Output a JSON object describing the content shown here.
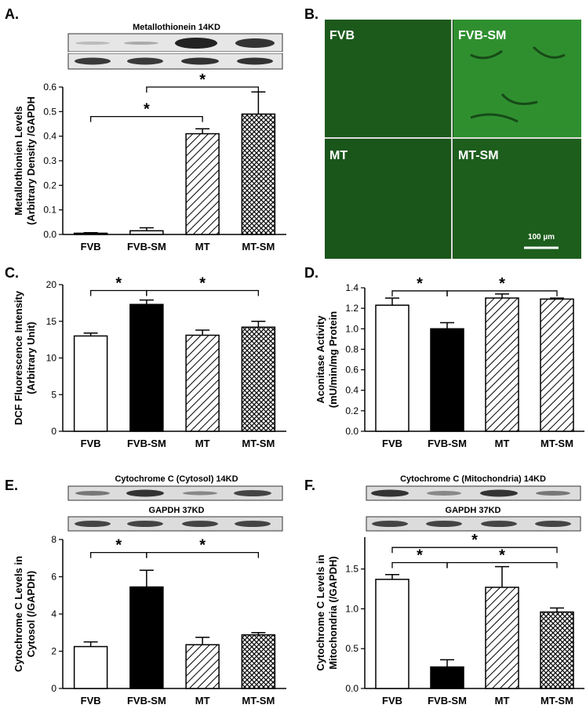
{
  "panels": {
    "A": {
      "letter": "A.",
      "blot_label": "Metallothionein 14KD"
    },
    "B": {
      "letter": "B.",
      "labels": [
        "FVB",
        "FVB-SM",
        "MT",
        "MT-SM"
      ],
      "scale_bar": "100 µm"
    },
    "C": {
      "letter": "C."
    },
    "D": {
      "letter": "D."
    },
    "E": {
      "letter": "E.",
      "blot_label_top": "Cytochrome C (Cytosol) 14KD",
      "blot_label_bottom": "GAPDH 37KD"
    },
    "F": {
      "letter": "F.",
      "blot_label_top": "Cytochrome C (Mitochondria) 14KD",
      "blot_label_bottom": "GAPDH 37KD"
    }
  },
  "colors": {
    "fill_FVB": "#ffffff",
    "fill_FVB_SM": "#000000",
    "micrograph_green": "#1f6b1f"
  },
  "chart_data": [
    {
      "id": "A",
      "type": "bar",
      "categories": [
        "FVB",
        "FVB-SM",
        "MT",
        "MT-SM"
      ],
      "values": [
        0.005,
        0.015,
        0.41,
        0.49
      ],
      "errors": [
        0.002,
        0.012,
        0.02,
        0.09
      ],
      "fills": [
        "white",
        "white",
        "hatch",
        "crosshatch"
      ],
      "ylabel": [
        "Metallothionien Levels",
        "(Arbitrary Density /GAPDH"
      ],
      "ylim": [
        0,
        0.6
      ],
      "yticks": [
        0.0,
        0.1,
        0.2,
        0.3,
        0.4,
        0.5,
        0.6
      ],
      "ytick_labels": [
        "0.0",
        "0.1",
        "0.2",
        "0.3",
        "0.4",
        "0.5",
        "0.6"
      ],
      "sig": [
        {
          "from": 0,
          "to": 2,
          "y": 0.48,
          "label": "*"
        },
        {
          "from": 1,
          "to": 3,
          "y": 0.6,
          "label": "*"
        }
      ]
    },
    {
      "id": "C",
      "type": "bar",
      "categories": [
        "FVB",
        "FVB-SM",
        "MT",
        "MT-SM"
      ],
      "values": [
        13.0,
        17.3,
        13.1,
        14.2
      ],
      "errors": [
        0.4,
        0.6,
        0.7,
        0.8
      ],
      "fills": [
        "white",
        "black",
        "hatch",
        "crosshatch"
      ],
      "ylabel": [
        "DCF Fluorescence Intensity",
        "(Arbitrary Unit)"
      ],
      "ylim": [
        0,
        20
      ],
      "yticks": [
        0,
        5,
        10,
        15,
        20
      ],
      "ytick_labels": [
        "0",
        "5",
        "10",
        "15",
        "20"
      ],
      "sig": [
        {
          "from": 0,
          "to": 1,
          "y": 19.2,
          "label": "*"
        },
        {
          "from": 1,
          "to": 3,
          "y": 19.2,
          "label": "*"
        }
      ]
    },
    {
      "id": "D",
      "type": "bar",
      "categories": [
        "FVB",
        "FVB-SM",
        "MT",
        "MT-SM"
      ],
      "values": [
        1.23,
        1.0,
        1.3,
        1.29
      ],
      "errors": [
        0.07,
        0.06,
        0.04,
        0.01
      ],
      "fills": [
        "white",
        "black",
        "hatch",
        "hatch"
      ],
      "ylabel": [
        "Aconitase Activity",
        "(mU/min/mg Protein"
      ],
      "ylim": [
        0,
        1.4
      ],
      "yticks": [
        0.0,
        0.2,
        0.4,
        0.6,
        0.8,
        1.0,
        1.2,
        1.4
      ],
      "ytick_labels": [
        "0.0",
        "0.2",
        "0.4",
        "0.6",
        "0.8",
        "1.0",
        "1.2",
        "1.4"
      ],
      "sig": [
        {
          "from": 0,
          "to": 1,
          "y": 1.37,
          "label": "*"
        },
        {
          "from": 1,
          "to": 3,
          "y": 1.37,
          "label": "*"
        }
      ]
    },
    {
      "id": "E",
      "type": "bar",
      "categories": [
        "FVB",
        "FVB-SM",
        "MT",
        "MT-SM"
      ],
      "values": [
        2.25,
        5.45,
        2.35,
        2.88
      ],
      "errors": [
        0.25,
        0.9,
        0.4,
        0.12
      ],
      "fills": [
        "white",
        "black",
        "hatch",
        "crosshatch"
      ],
      "ylabel": [
        "Cytochrome C Levels in",
        "Cytosol (/GAPDH)"
      ],
      "ylim": [
        0,
        8
      ],
      "yticks": [
        0,
        2,
        4,
        6,
        8
      ],
      "ytick_labels": [
        "0",
        "2",
        "4",
        "6",
        "8"
      ],
      "sig": [
        {
          "from": 0,
          "to": 1,
          "y": 7.3,
          "label": "*"
        },
        {
          "from": 1,
          "to": 3,
          "y": 7.3,
          "label": "*"
        }
      ]
    },
    {
      "id": "F",
      "type": "bar",
      "categories": [
        "FVB",
        "FVB-SM",
        "MT",
        "MT-SM"
      ],
      "values": [
        1.37,
        0.27,
        1.27,
        0.96
      ],
      "errors": [
        0.06,
        0.09,
        0.26,
        0.05
      ],
      "fills": [
        "white",
        "black",
        "hatch",
        "crosshatch"
      ],
      "ylabel": [
        "Cytochrome C Levels in",
        "Mitochondria (/GAPDH)"
      ],
      "ylim": [
        0,
        1.9
      ],
      "yticks": [
        0.0,
        0.5,
        1.0,
        1.5
      ],
      "ytick_labels": [
        "0.0",
        "0.5",
        "1.0",
        "1.5"
      ],
      "sig": [
        {
          "from": 0,
          "to": 3,
          "y": 1.77,
          "label": "*"
        },
        {
          "from": 0,
          "to": 1,
          "y": 1.58,
          "label": "*"
        },
        {
          "from": 1,
          "to": 3,
          "y": 1.58,
          "label": "*"
        }
      ]
    }
  ]
}
